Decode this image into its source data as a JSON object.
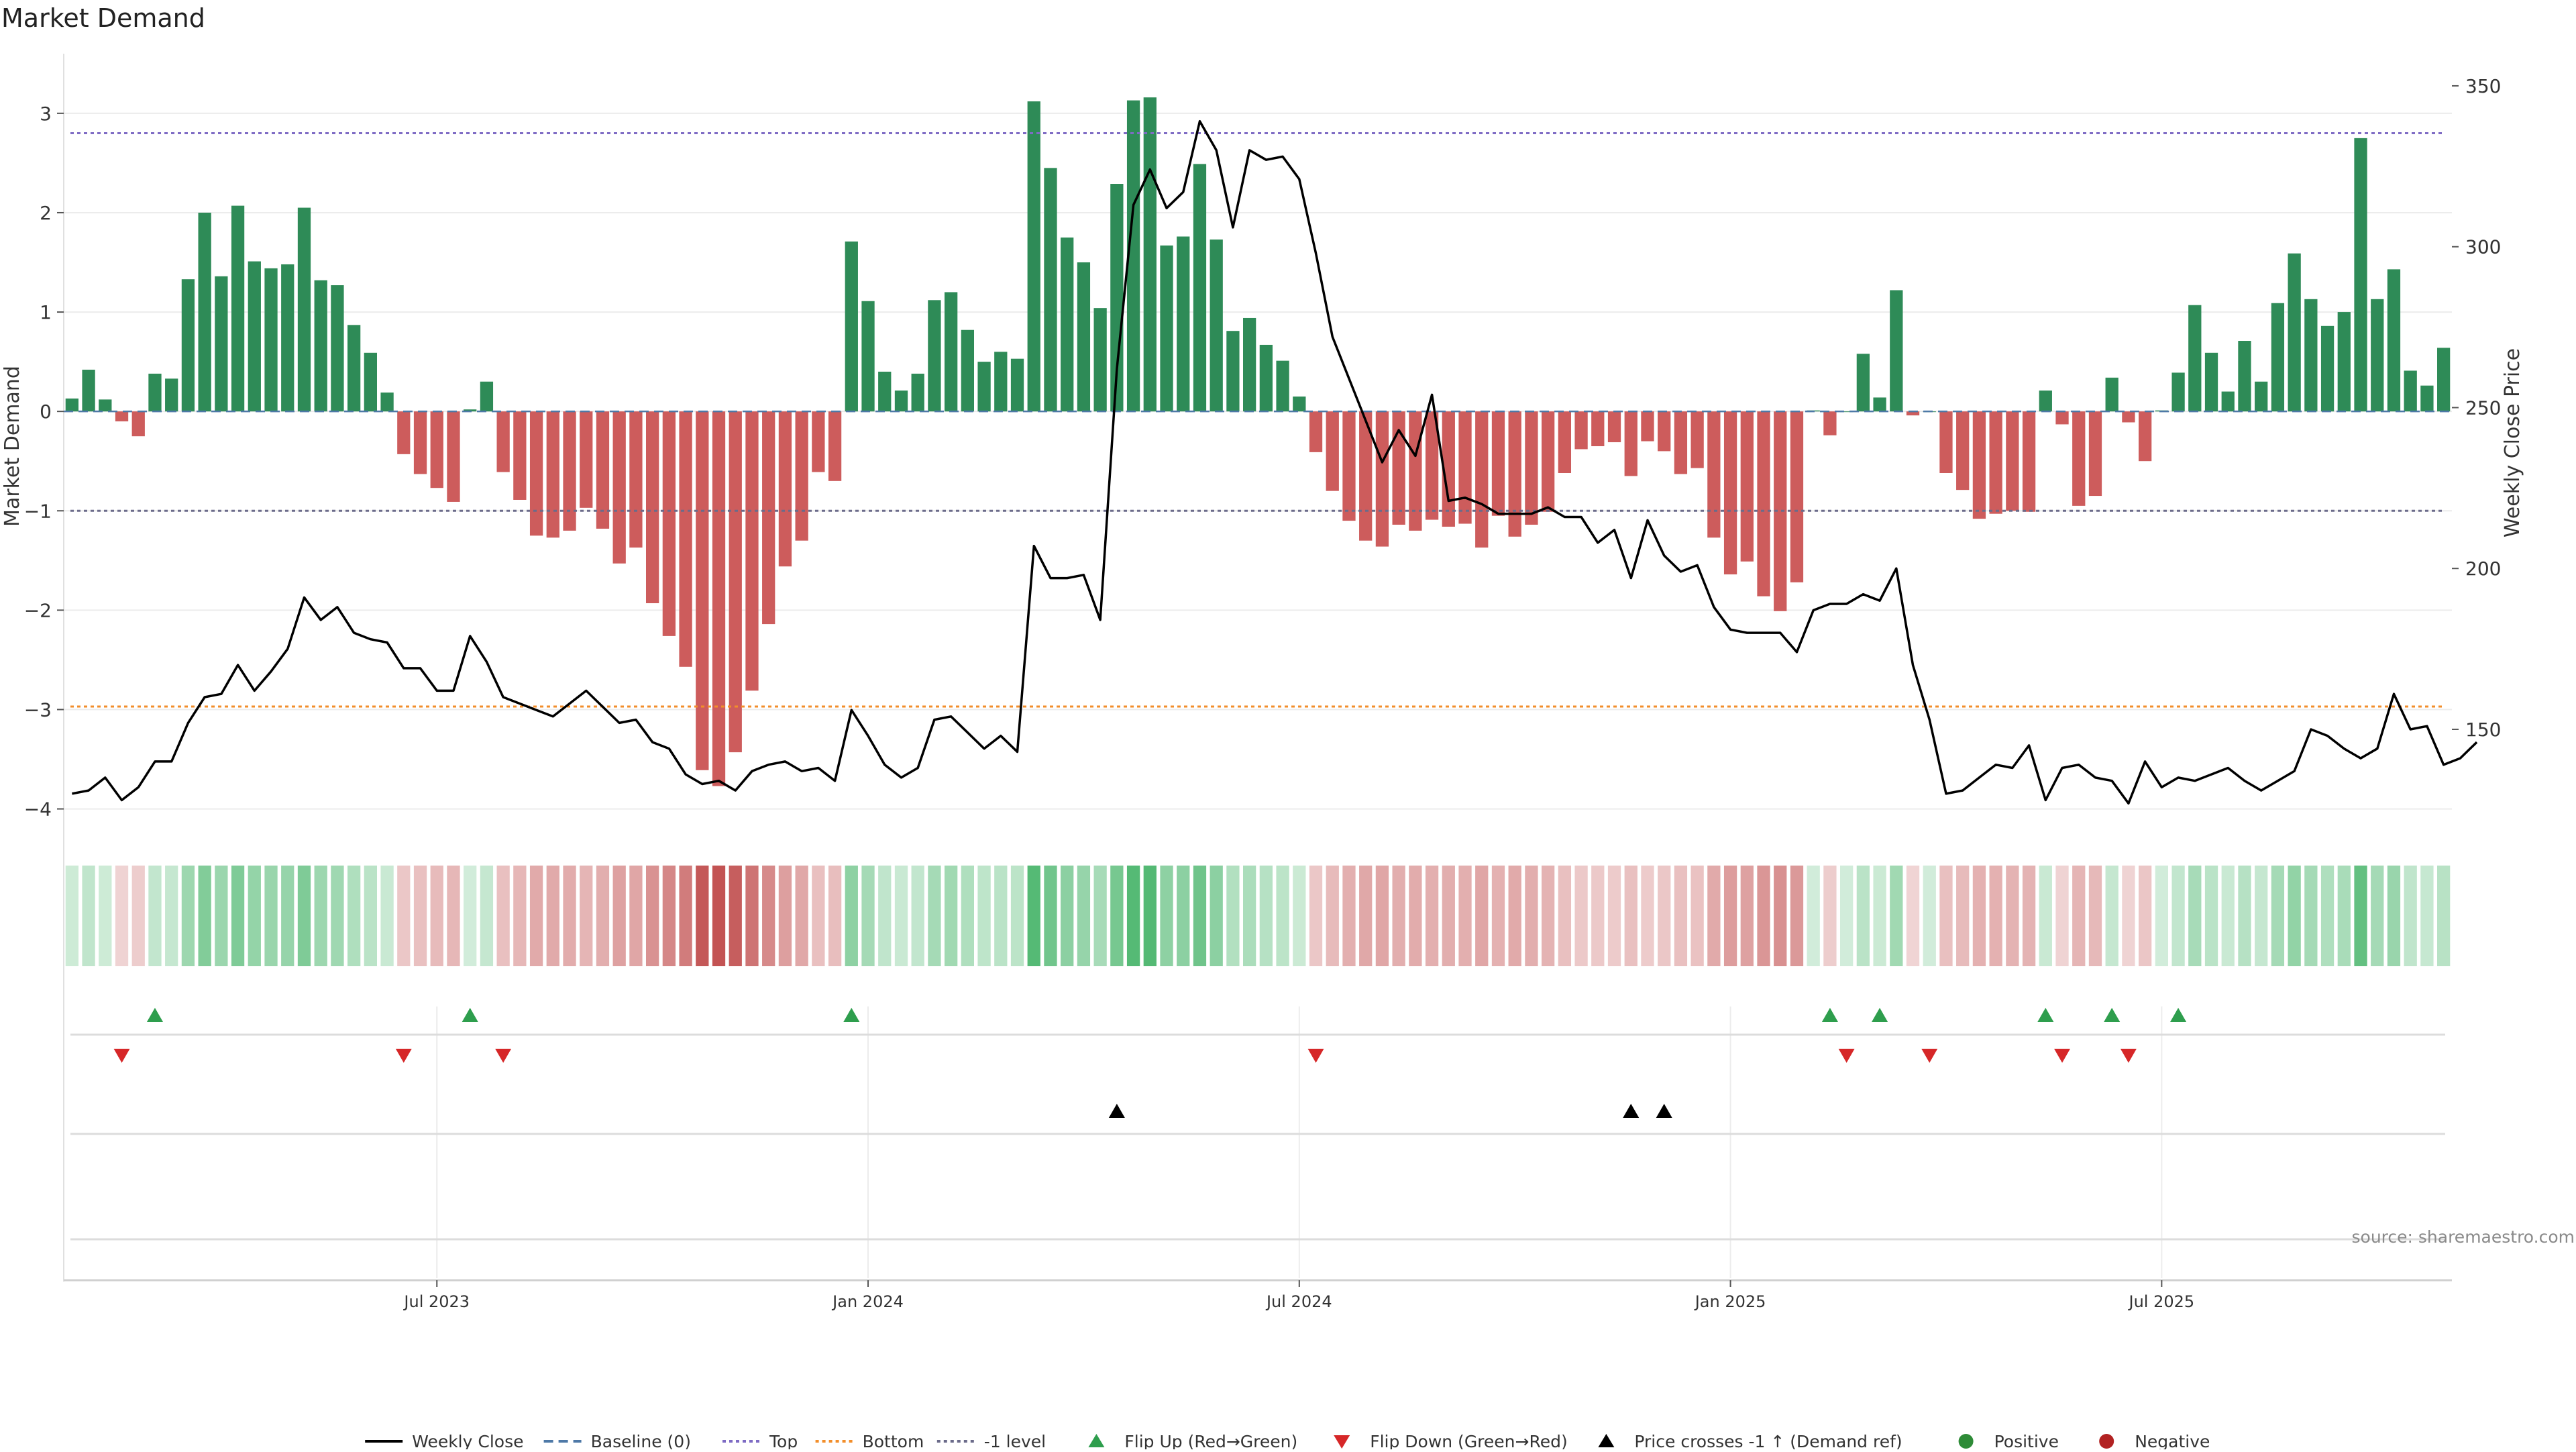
{
  "chart_data": {
    "type": "bar",
    "title": "Market Demand",
    "ylabel_left": "Market Demand",
    "ylabel_right": "Weekly Close Price",
    "ylim_left": [
      -4.3,
      3.6
    ],
    "ylim_right": [
      116,
      360
    ],
    "yticks_left": [
      {
        "v": 3,
        "label": "3"
      },
      {
        "v": 2,
        "label": "2"
      },
      {
        "v": 1,
        "label": "1"
      },
      {
        "v": 0,
        "label": "0"
      },
      {
        "v": -1,
        "label": "−1"
      },
      {
        "v": -2,
        "label": "−2"
      },
      {
        "v": -3,
        "label": "−3"
      },
      {
        "v": -4,
        "label": "−4"
      }
    ],
    "yticks_right": [
      {
        "v": 350,
        "label": "350"
      },
      {
        "v": 300,
        "label": "300"
      },
      {
        "v": 250,
        "label": "250"
      },
      {
        "v": 200,
        "label": "200"
      },
      {
        "v": 150,
        "label": "150"
      }
    ],
    "xticks": [
      {
        "week": 22,
        "label": "Jul 2023"
      },
      {
        "week": 48,
        "label": "Jan 2024"
      },
      {
        "week": 74,
        "label": "Jul 2024"
      },
      {
        "week": 100,
        "label": "Jan 2025"
      },
      {
        "week": 126,
        "label": "Jul 2025"
      }
    ],
    "reference_lines": [
      {
        "name": "Top",
        "value": 2.8,
        "color": "#7e6bc4"
      },
      {
        "name": "Bottom",
        "value": -2.97,
        "color": "#f28e2b"
      },
      {
        "name": "-1 level",
        "value": -1.0,
        "color": "#6b6b8a"
      }
    ],
    "demand": [
      0.13,
      0.42,
      0.12,
      -0.1,
      -0.25,
      0.38,
      0.33,
      1.33,
      2.0,
      1.36,
      2.07,
      1.51,
      1.44,
      1.48,
      2.05,
      1.32,
      1.27,
      0.87,
      0.59,
      0.19,
      -0.43,
      -0.63,
      -0.77,
      -0.91,
      0.02,
      0.3,
      -0.61,
      -0.89,
      -1.25,
      -1.27,
      -1.2,
      -0.97,
      -1.18,
      -1.53,
      -1.37,
      -1.93,
      -2.26,
      -2.57,
      -3.61,
      -3.77,
      -3.43,
      -2.81,
      -2.14,
      -1.56,
      -1.3,
      -0.61,
      -0.7,
      1.71,
      1.11,
      0.4,
      0.21,
      0.38,
      1.12,
      1.2,
      0.82,
      0.5,
      0.6,
      0.53,
      3.12,
      2.45,
      1.75,
      1.5,
      1.04,
      2.29,
      3.13,
      3.16,
      1.67,
      1.76,
      2.49,
      1.73,
      0.81,
      0.94,
      0.67,
      0.51,
      0.15,
      -0.41,
      -0.8,
      -1.1,
      -1.3,
      -1.36,
      -1.14,
      -1.2,
      -1.09,
      -1.16,
      -1.13,
      -1.37,
      -1.05,
      -1.26,
      -1.14,
      -1.01,
      -0.62,
      -0.38,
      -0.35,
      -0.31,
      -0.65,
      -0.3,
      -0.4,
      -0.63,
      -0.57,
      -1.27,
      -1.64,
      -1.51,
      -1.86,
      -2.01,
      -1.72,
      0.01,
      -0.24,
      0.0,
      0.58,
      0.14,
      1.22,
      -0.04,
      0.0,
      -0.62,
      -0.79,
      -1.08,
      -1.03,
      -1.0,
      -1.01,
      0.21,
      -0.13,
      -0.95,
      -0.85,
      0.34,
      -0.11,
      -0.5,
      0.01,
      0.39,
      1.07,
      0.59,
      0.2,
      0.71,
      0.3,
      1.09,
      1.59,
      1.13,
      0.86,
      1.0,
      2.75,
      1.13,
      1.43,
      0.41,
      0.26,
      0.64
    ],
    "weekly_close": [
      130,
      131,
      135,
      128,
      132,
      140,
      140,
      152,
      160,
      161,
      170,
      162,
      168,
      175,
      191,
      184,
      188,
      180,
      178,
      177,
      169,
      169,
      162,
      162,
      179,
      171,
      160,
      158,
      156,
      154,
      158,
      162,
      157,
      152,
      153,
      146,
      144,
      136,
      133,
      134,
      131,
      137,
      139,
      140,
      137,
      138,
      134,
      156,
      148,
      139,
      135,
      138,
      153,
      154,
      149,
      144,
      148,
      143,
      207,
      197,
      197,
      198,
      184,
      262,
      313,
      324,
      312,
      317,
      339,
      330,
      306,
      330,
      327,
      328,
      321,
      298,
      272,
      259,
      246,
      233,
      243,
      235,
      254,
      221,
      222,
      220,
      217,
      217,
      217,
      219,
      216,
      216,
      208,
      212,
      197,
      215,
      204,
      199,
      201,
      188,
      181,
      180,
      180,
      180,
      174,
      187,
      189,
      189,
      192,
      190,
      200,
      170,
      153,
      130,
      131,
      135,
      139,
      138,
      145,
      128,
      138,
      139,
      135,
      134,
      127,
      140,
      132,
      135,
      134,
      136,
      138,
      134,
      131,
      134,
      137,
      150,
      148,
      144,
      141,
      144,
      161,
      150,
      151,
      139,
      141,
      146
    ],
    "signals": {
      "flip_up": [
        5,
        24,
        47,
        106,
        109,
        119,
        123,
        127
      ],
      "flip_down": [
        3,
        20,
        26,
        75,
        107,
        112,
        120,
        124
      ],
      "price_cross": [
        63,
        94,
        96
      ],
      "positive": [],
      "negative": []
    },
    "annotations": {
      "source": "source: sharemaestro.com"
    },
    "legend": {
      "placement": "bottom-center",
      "entries": [
        {
          "label": "Weekly Close",
          "kind": "line",
          "color": "#000000"
        },
        {
          "label": "Baseline (0)",
          "kind": "dash",
          "color": "#4e79a7"
        },
        {
          "label": "Top",
          "kind": "dot",
          "color": "#7e6bc4"
        },
        {
          "label": "Bottom",
          "kind": "dot",
          "color": "#f28e2b"
        },
        {
          "label": "-1 level",
          "kind": "dot",
          "color": "#6b6b8a"
        },
        {
          "label": "Flip Up (Red→Green)",
          "kind": "tri-up",
          "color": "#2e9e4d"
        },
        {
          "label": "Flip Down (Green→Red)",
          "kind": "tri-down",
          "color": "#d62728"
        },
        {
          "label": "Price crosses -1 ↑ (Demand ref)",
          "kind": "tri-up",
          "color": "#000000"
        },
        {
          "label": "Positive",
          "kind": "circle",
          "color": "#2e8b37"
        },
        {
          "label": "Negative",
          "kind": "circle",
          "color": "#b22222"
        }
      ]
    },
    "colors": {
      "positive_bar": "#2e8b57",
      "negative_bar": "#cd5c5c",
      "grid": "#ececec"
    }
  }
}
